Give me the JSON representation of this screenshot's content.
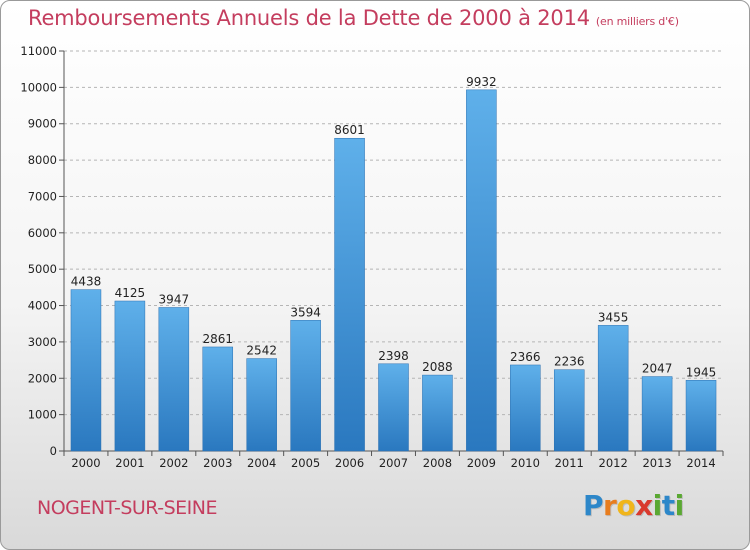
{
  "header": {
    "title": "Remboursements Annuels de la Dette de 2000 à 2014",
    "subtitle": "(en milliers d'€)"
  },
  "footer": {
    "place": "NOGENT-SUR-SEINE",
    "logo": [
      "P",
      "r",
      "o",
      "x",
      "i",
      "t",
      "i"
    ]
  },
  "colors": {
    "title": "#c43d5e",
    "bar_top": "#5fb0ea",
    "bar_bottom": "#2a78bf",
    "logo": [
      "#2d87c9",
      "#e87d1e",
      "#f0b51b",
      "#d93a2e",
      "#5aa832",
      "#2d87c9",
      "#5aa832"
    ]
  },
  "chart_data": {
    "type": "bar",
    "title": "Remboursements Annuels de la Dette de 2000 à 2014",
    "subtitle": "(en milliers d'€)",
    "xlabel": "",
    "ylabel": "",
    "categories": [
      "2000",
      "2001",
      "2002",
      "2003",
      "2004",
      "2005",
      "2006",
      "2007",
      "2008",
      "2009",
      "2010",
      "2011",
      "2012",
      "2013",
      "2014"
    ],
    "values": [
      4438,
      4125,
      3947,
      2861,
      2542,
      3594,
      8601,
      2398,
      2088,
      9932,
      2366,
      2236,
      3455,
      2047,
      1945
    ],
    "ylim": [
      0,
      11000
    ],
    "yticks": [
      0,
      1000,
      2000,
      3000,
      4000,
      5000,
      6000,
      7000,
      8000,
      9000,
      10000,
      11000
    ],
    "grid": true,
    "legend": "none"
  }
}
